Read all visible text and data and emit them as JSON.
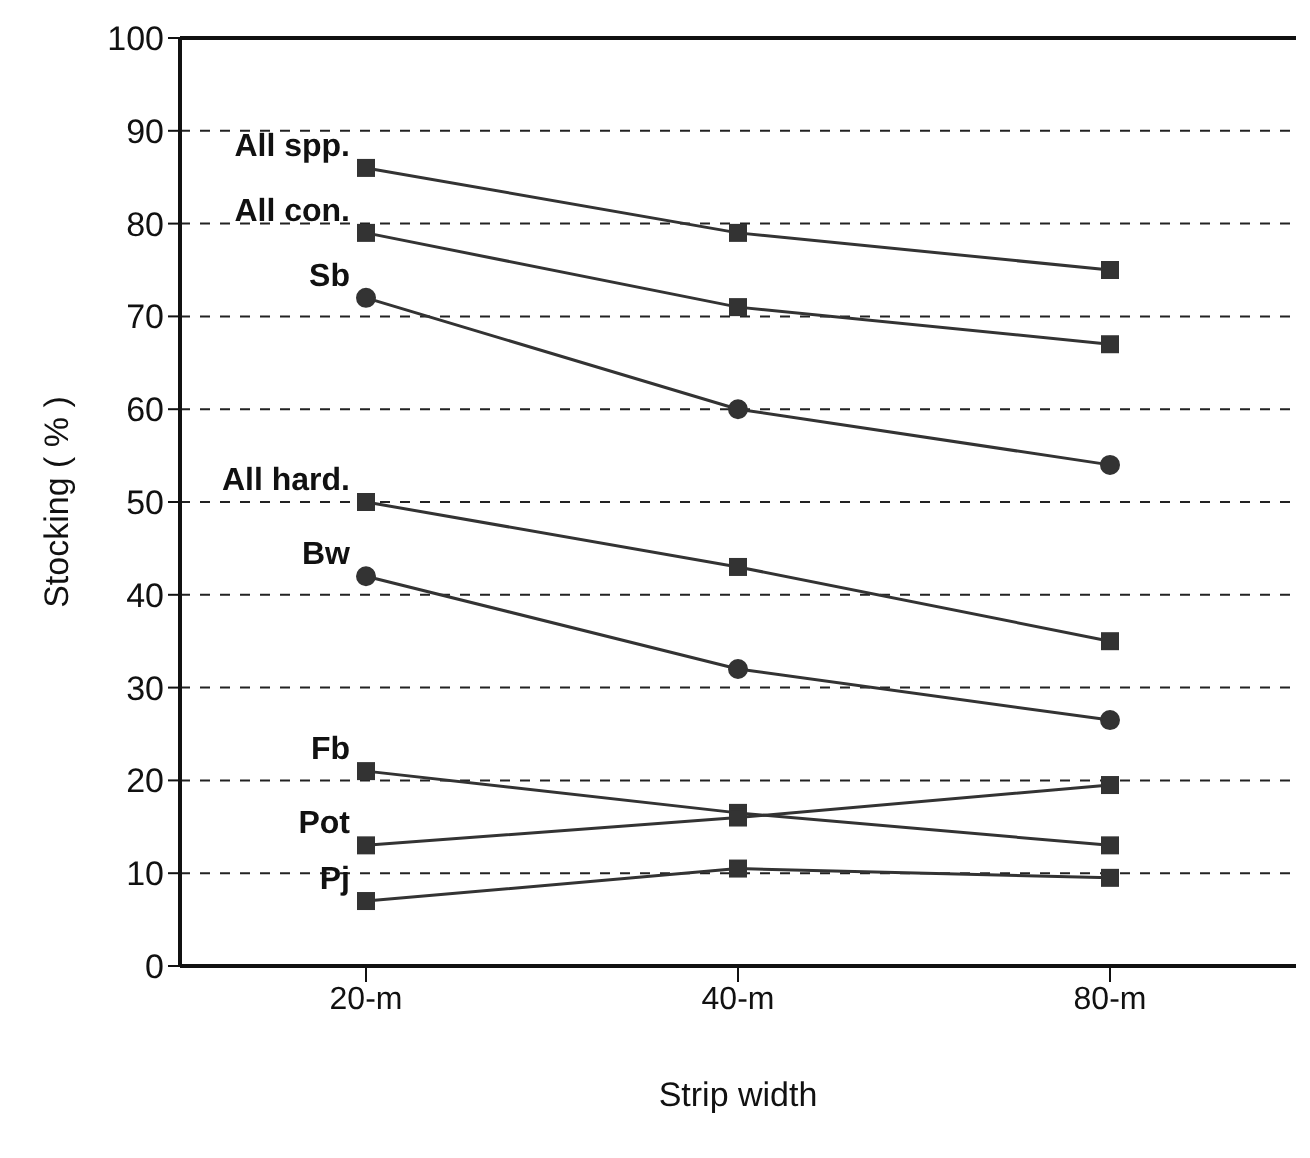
{
  "chart_data": {
    "type": "line",
    "xlabel": "Strip width",
    "ylabel": "Stocking ( % )",
    "categories": [
      "20-m",
      "40-m",
      "80-m"
    ],
    "ylim": [
      0,
      100
    ],
    "yticks": [
      0,
      10,
      20,
      30,
      40,
      50,
      60,
      70,
      80,
      90,
      100
    ],
    "grid": "y",
    "legend": false,
    "line_style": "solid",
    "series": [
      {
        "name": "All spp.",
        "color": "#333333",
        "marker": "square",
        "values": [
          86,
          79,
          75
        ]
      },
      {
        "name": "All con.",
        "color": "#333333",
        "marker": "square",
        "values": [
          79,
          71,
          67
        ]
      },
      {
        "name": "Sb",
        "color": "#333333",
        "marker": "circle",
        "values": [
          72,
          60,
          54
        ]
      },
      {
        "name": "All hard.",
        "color": "#333333",
        "marker": "square",
        "values": [
          50,
          43,
          35
        ]
      },
      {
        "name": "Bw",
        "color": "#333333",
        "marker": "circle",
        "values": [
          42,
          32,
          26.5
        ]
      },
      {
        "name": "Fb",
        "color": "#333333",
        "marker": "square",
        "values": [
          21,
          16.5,
          13
        ]
      },
      {
        "name": "Pot",
        "color": "#333333",
        "marker": "square",
        "values": [
          13,
          16,
          19.5
        ]
      },
      {
        "name": "Pj",
        "color": "#333333",
        "marker": "square",
        "values": [
          7,
          10.5,
          9.5
        ]
      }
    ]
  }
}
